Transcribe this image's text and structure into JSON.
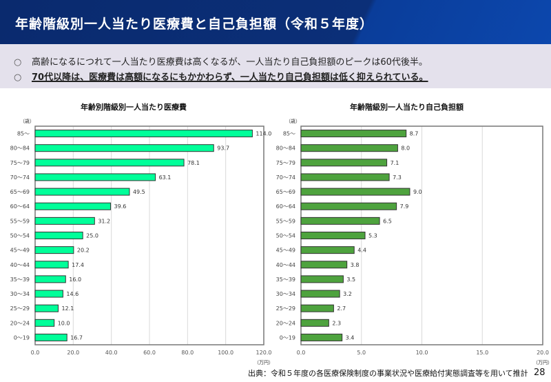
{
  "header": {
    "title": "年齢階級別一人当たり医療費と自己負担額（令和５年度）"
  },
  "summary": {
    "bullet": "○",
    "items": [
      "高齢になるにつれて一人当たり医療費は高くなるが、一人当たり自己負担額のピークは60代後半。",
      "70代以降は、医療費は高額になるにもかかわらず、一人当たり自己負担額は低く抑えられている。"
    ]
  },
  "chart_data": [
    {
      "type": "bar",
      "orientation": "horizontal",
      "title": "年齢別階級別一人当たり医療費",
      "ylabel": "（歳）",
      "xlabel": "（万円）",
      "categories": [
        "85～",
        "80～84",
        "75～79",
        "70～74",
        "65～69",
        "60～64",
        "55～59",
        "50～54",
        "45～49",
        "40～44",
        "35～39",
        "30～34",
        "25～29",
        "20～24",
        "0～19"
      ],
      "values": [
        114.0,
        93.7,
        78.1,
        63.1,
        49.5,
        39.6,
        31.2,
        25.0,
        20.2,
        17.4,
        16.0,
        14.6,
        12.1,
        10.0,
        16.7
      ],
      "xlim": [
        0,
        120
      ],
      "xticks": [
        "0.0",
        "20.0",
        "40.0",
        "60.0",
        "80.0",
        "100.0",
        "120.0"
      ],
      "tickstep": 20,
      "grid": true,
      "color": "#00ff99"
    },
    {
      "type": "bar",
      "orientation": "horizontal",
      "title": "年齢階級別一人当たり自己負担額",
      "ylabel": "（歳）",
      "xlabel": "（万円）",
      "categories": [
        "85～",
        "80～84",
        "75～79",
        "70～74",
        "65～69",
        "60～64",
        "55～59",
        "50～54",
        "45～49",
        "40～44",
        "35～39",
        "30～34",
        "25～29",
        "20～24",
        "0～19"
      ],
      "values": [
        8.7,
        8.0,
        7.1,
        7.3,
        9.0,
        7.9,
        6.5,
        5.3,
        4.4,
        3.8,
        3.5,
        3.2,
        2.7,
        2.3,
        3.4
      ],
      "xlim": [
        0,
        20
      ],
      "xticks": [
        "0.0",
        "5.0",
        "10.0",
        "15.0",
        "20.0"
      ],
      "tickstep": 5,
      "grid": true,
      "color": "#4ea33e"
    }
  ],
  "footer": {
    "source": "出典：令和５年度の各医療保険制度の事業状況や医療給付実態調査等を用いて推計",
    "page": "28"
  }
}
